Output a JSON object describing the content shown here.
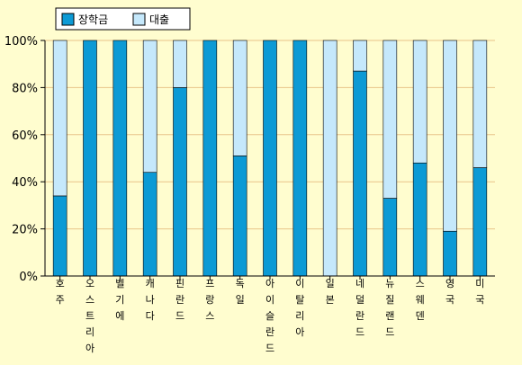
{
  "chart_data": {
    "type": "bar",
    "stacked": true,
    "categories": [
      "호주",
      "오스트리아",
      "벨기에",
      "캐나다",
      "핀란드",
      "프랑스",
      "독일",
      "아이슬란드",
      "이탈리아",
      "일본",
      "네덜란드",
      "뉴질랜드",
      "스웨덴",
      "영국",
      "미국"
    ],
    "series": [
      {
        "name": "장학금",
        "color": "#0c9ad5",
        "values": [
          34,
          100,
          100,
          44,
          80,
          100,
          51,
          100,
          100,
          0,
          87,
          33,
          48,
          19,
          46
        ]
      },
      {
        "name": "대출",
        "color": "#c5e8fb",
        "values": [
          66,
          0,
          0,
          56,
          20,
          0,
          49,
          0,
          0,
          100,
          13,
          67,
          52,
          81,
          54
        ]
      }
    ],
    "ylim": [
      0,
      100
    ],
    "yticks": [
      "0%",
      "20%",
      "40%",
      "60%",
      "80%",
      "100%"
    ],
    "grid": true,
    "gridline_color": "#e8c48a",
    "legend_position": "top-left"
  }
}
